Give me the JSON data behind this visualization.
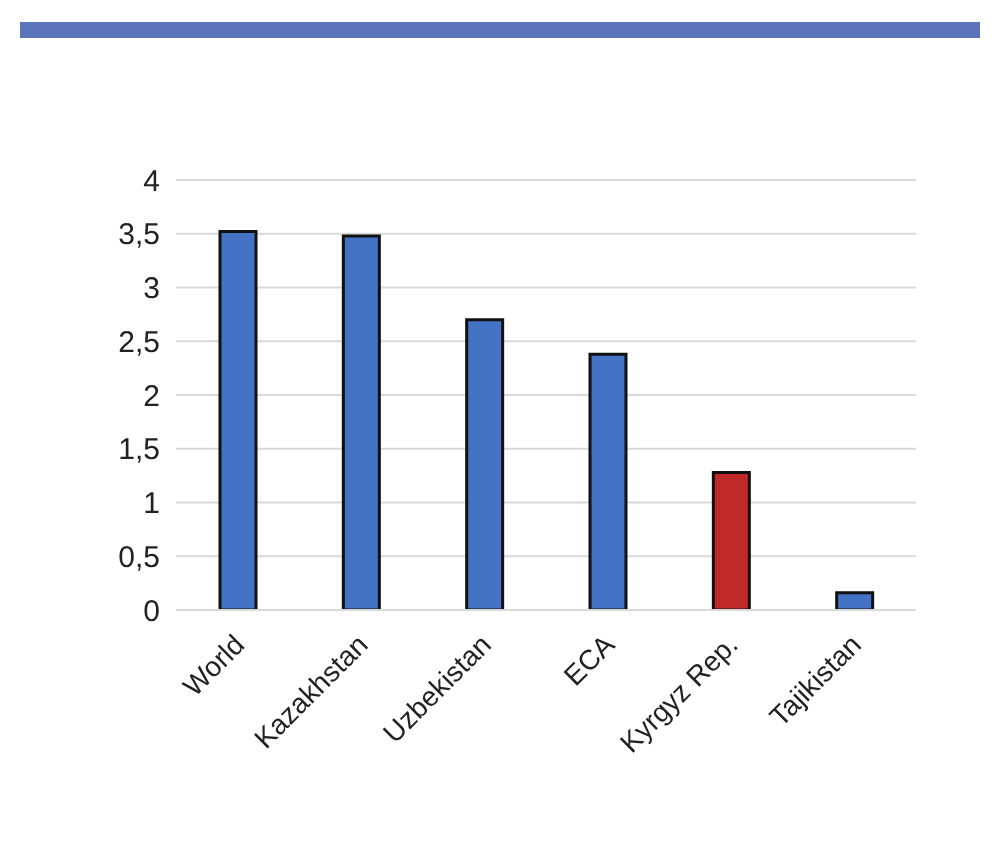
{
  "chart_data": {
    "type": "bar",
    "categories": [
      "World",
      "Kazakhstan",
      "Uzbekistan",
      "ECA",
      "Kyrgyz Rep.",
      "Tajikistan"
    ],
    "values": [
      3.52,
      3.48,
      2.7,
      2.38,
      1.28,
      0.16
    ],
    "colors": [
      "#4472c4",
      "#4472c4",
      "#4472c4",
      "#4472c4",
      "#c0282a",
      "#4472c4"
    ],
    "ylim": [
      0,
      4
    ],
    "yticks": [
      0,
      {
        "value": 0.5,
        "label": "0,5"
      },
      1,
      {
        "value": 1.5,
        "label": "1,5"
      },
      2,
      {
        "value": 2.5,
        "label": "2,5"
      },
      3,
      {
        "value": 3.5,
        "label": "3,5"
      },
      4
    ],
    "grid": "y"
  }
}
